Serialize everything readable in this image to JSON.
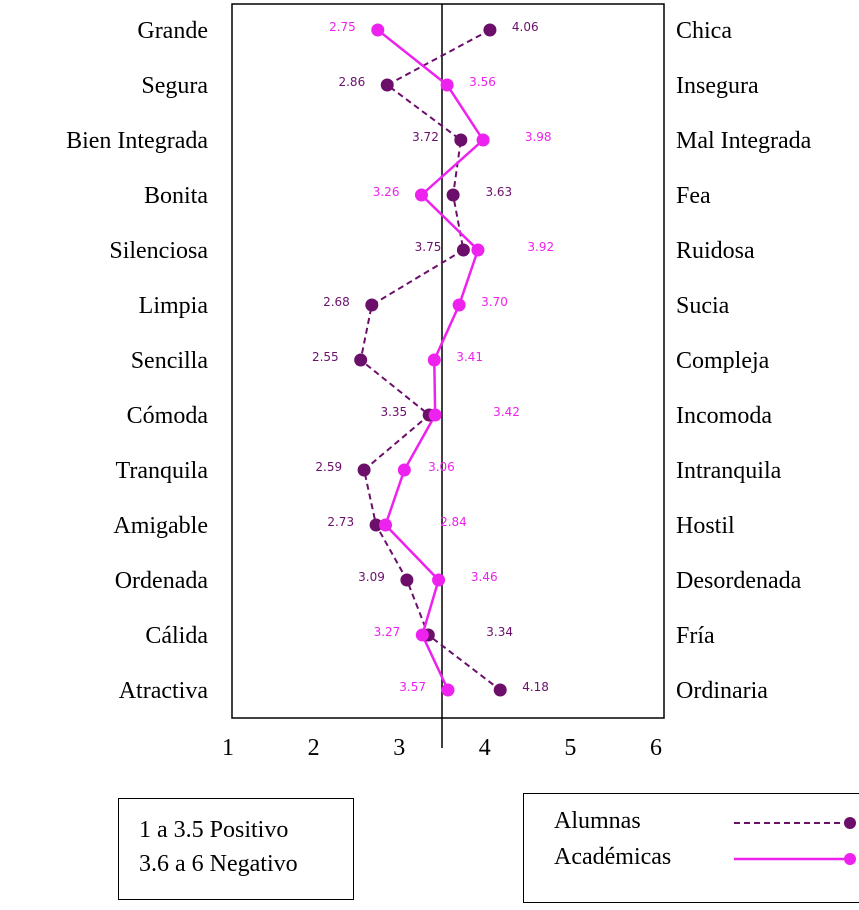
{
  "chart_data": {
    "type": "line",
    "categories_left": [
      "Grande",
      "Segura",
      "Bien Integrada",
      "Bonita",
      "Silenciosa",
      "Limpia",
      "Sencilla",
      "Cómoda",
      "Tranquila",
      "Amigable",
      "Ordenada",
      "Cálida",
      "Atractiva"
    ],
    "categories_right": [
      "Chica",
      "Insegura",
      "Mal Integrada",
      "Fea",
      "Ruidosa",
      "Sucia",
      "Compleja",
      "Incomoda",
      "Intranquila",
      "Hostil",
      "Desordenada",
      "Fría",
      "Ordinaria"
    ],
    "xticks": [
      "1",
      "2",
      "3",
      "4",
      "5",
      "6"
    ],
    "xlim": [
      1,
      6
    ],
    "reference_line": 3.5,
    "series": [
      {
        "name": "Alumnas",
        "color": "#6b0f6b",
        "style": "dashed",
        "values": [
          4.06,
          2.86,
          3.72,
          3.63,
          3.75,
          2.68,
          2.55,
          3.35,
          2.59,
          2.73,
          3.09,
          3.34,
          4.18
        ],
        "labels": [
          "4.06",
          "2.86",
          "3.72",
          "3.63",
          "3.75",
          "2.68",
          "2.55",
          "3.35",
          "2.59",
          "2.73",
          "3.09",
          "3.34",
          "4.18"
        ]
      },
      {
        "name": "Académicas",
        "color": "#ee22ee",
        "style": "solid",
        "values": [
          2.75,
          3.56,
          3.98,
          3.26,
          3.92,
          3.7,
          3.41,
          3.42,
          3.06,
          2.84,
          3.46,
          3.27,
          3.57
        ],
        "labels": [
          "2.75",
          "3.56",
          "3.98",
          "3.26",
          "3.92",
          "3.70",
          "3.41",
          "3.42",
          "3.06",
          "2.84",
          "3.46",
          "3.27",
          "3.57"
        ]
      }
    ],
    "label_color_overrides": [
      "#b000b0",
      "#6b0f6b",
      "#6b0f6b",
      "#b000b0",
      "#6b0f6b",
      "#6b0f6b",
      "#6b0f6b",
      "#6b0f6b",
      "#6b0f6b",
      "#6b0f6b",
      "#6b0f6b",
      "#ee22ee",
      "#6b0f6b"
    ]
  },
  "note": {
    "line1": "1 a 3.5 Positivo",
    "line2": "3.6 a 6 Negativo"
  },
  "legend": {
    "alumnas": "Alumnas",
    "academicas": "Académicas"
  }
}
